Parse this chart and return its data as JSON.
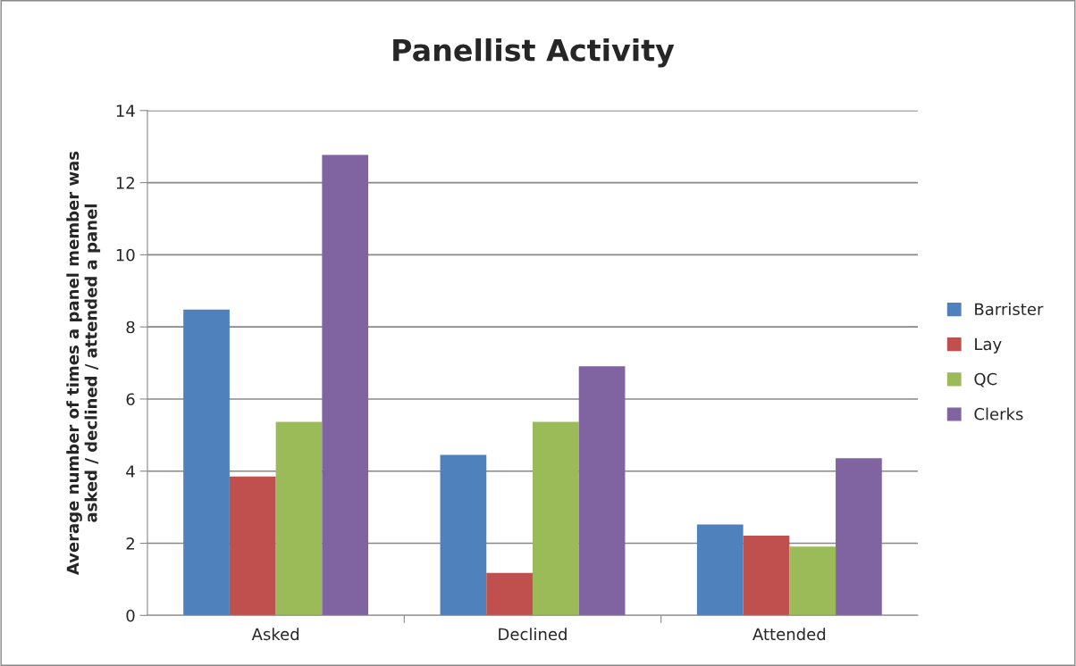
{
  "chart_data": {
    "type": "bar",
    "title": "Panellist Activity",
    "ylabel": "Average number of times a panel member was\nasked / declined / attended a panel",
    "categories": [
      "Asked",
      "Declined",
      "Attended"
    ],
    "series": [
      {
        "name": "Barrister",
        "color": "#4f81bd",
        "values": [
          8.48,
          4.45,
          2.52
        ]
      },
      {
        "name": "Lay",
        "color": "#c0504d",
        "values": [
          3.85,
          1.18,
          2.21
        ]
      },
      {
        "name": "QC",
        "color": "#9bbb59",
        "values": [
          5.37,
          5.37,
          1.91
        ]
      },
      {
        "name": "Clerks",
        "color": "#8064a2",
        "values": [
          12.77,
          6.91,
          4.36
        ]
      }
    ],
    "ylim": [
      0,
      14
    ],
    "yticks": [
      0,
      2,
      4,
      6,
      8,
      10,
      12,
      14
    ],
    "grid": "y",
    "legend": "right"
  }
}
